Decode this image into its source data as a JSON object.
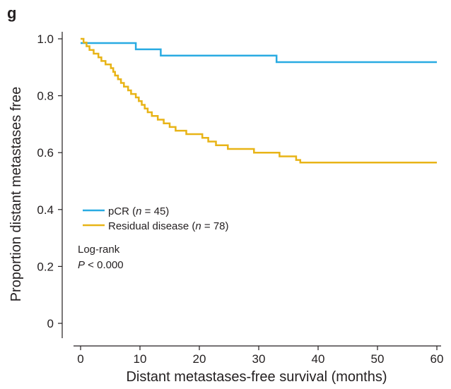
{
  "panel_label": "g",
  "chart_data": {
    "type": "line",
    "title": "",
    "xlabel": "Distant metastases-free survival (months)",
    "ylabel": "Proportion distant metastases free",
    "xlim": [
      0,
      60
    ],
    "ylim": [
      0,
      1.0
    ],
    "x_ticks": [
      0,
      10,
      20,
      30,
      40,
      50,
      60
    ],
    "y_ticks": [
      0,
      0.2,
      0.4,
      0.6,
      0.8,
      1.0
    ],
    "x_tick_labels": [
      "0",
      "10",
      "20",
      "30",
      "40",
      "50",
      "60"
    ],
    "y_tick_labels": [
      "0",
      "0.2",
      "0.4",
      "0.6",
      "0.8",
      "1.0"
    ],
    "grid": false,
    "legend_position": "lower-left",
    "series": [
      {
        "name": "pCR (n = 45)",
        "label_prefix": "pCR (",
        "label_italic": "n",
        "label_suffix": " = 45)",
        "color": "#29abe2",
        "step": true,
        "x": [
          0,
          9.3,
          13.5,
          33,
          60
        ],
        "y": [
          0.985,
          0.963,
          0.941,
          0.918,
          0.918
        ]
      },
      {
        "name": "Residual disease (n = 78)",
        "label_prefix": "Residual disease (",
        "label_italic": "n",
        "label_suffix": " = 78)",
        "color": "#e8b417",
        "step": true,
        "x": [
          0,
          0.5,
          1,
          1.5,
          2.2,
          3,
          3.5,
          4.2,
          5.1,
          5.5,
          5.8,
          6.3,
          6.8,
          7.3,
          8,
          8.5,
          9.3,
          9.8,
          10.3,
          10.8,
          11.3,
          12,
          13,
          14,
          15,
          16,
          17.8,
          20.5,
          21.5,
          22.8,
          24.8,
          29.2,
          33.5,
          36.3,
          37,
          60
        ],
        "y": [
          1.0,
          0.987,
          0.974,
          0.961,
          0.948,
          0.935,
          0.922,
          0.91,
          0.897,
          0.884,
          0.871,
          0.858,
          0.845,
          0.832,
          0.819,
          0.806,
          0.794,
          0.781,
          0.768,
          0.755,
          0.742,
          0.729,
          0.716,
          0.703,
          0.69,
          0.677,
          0.665,
          0.652,
          0.639,
          0.626,
          0.613,
          0.6,
          0.587,
          0.574,
          0.565,
          0.565
        ]
      }
    ],
    "annotation": {
      "line1": "Log-rank",
      "p_italic": "P",
      "p_rest": " < 0.000"
    }
  }
}
